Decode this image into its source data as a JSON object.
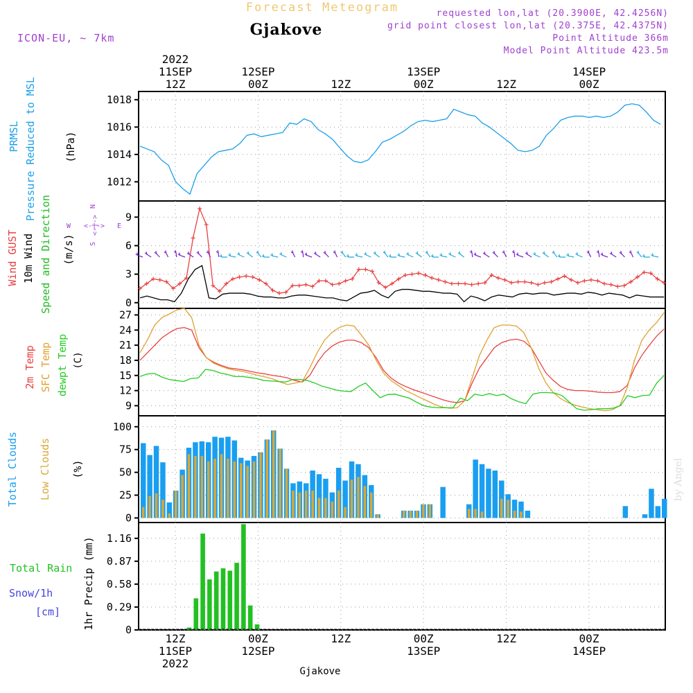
{
  "header": {
    "faded_title": "Forecast Meteogram",
    "location": "Gjakove",
    "model": "ICON-EU, ~ 7km",
    "requested": "requested lon,lat (20.3900E, 42.4256N)",
    "grid_point": "grid point closest lon,lat (20.375E, 42.4375N)",
    "point_alt": "Point Altitude 366m",
    "model_alt": "Model Point Altitude 423.5m",
    "footer_location": "Gjakove",
    "watermark": "by Angel"
  },
  "time_axis": {
    "top_labels": [
      {
        "h": 12,
        "lines": [
          "2022",
          "11SEP",
          "12Z"
        ]
      },
      {
        "h": 24,
        "lines": [
          "12SEP",
          "00Z"
        ]
      },
      {
        "h": 36,
        "lines": [
          "12Z"
        ]
      },
      {
        "h": 48,
        "lines": [
          "13SEP",
          "00Z"
        ]
      },
      {
        "h": 60,
        "lines": [
          "12Z"
        ]
      },
      {
        "h": 72,
        "lines": [
          "14SEP",
          "00Z"
        ]
      }
    ],
    "bottom_labels": [
      {
        "h": 12,
        "lines": [
          "12Z",
          "11SEP",
          "2022"
        ]
      },
      {
        "h": 24,
        "lines": [
          "00Z",
          "12SEP"
        ]
      },
      {
        "h": 36,
        "lines": [
          "12Z"
        ]
      },
      {
        "h": 48,
        "lines": [
          "00Z",
          "13SEP"
        ]
      },
      {
        "h": 60,
        "lines": [
          "12Z"
        ]
      },
      {
        "h": 72,
        "lines": [
          "00Z",
          "14SEP"
        ]
      }
    ]
  },
  "compass": {
    "n": "N",
    "s": "S",
    "w": "W",
    "e": "E"
  },
  "colors": {
    "pressure": "#1b9fe8",
    "gust": "#e84040",
    "wind": "#000000",
    "dir": "#22bb22",
    "temp2m": "#e84040",
    "sfc": "#e0a030",
    "dew": "#22cc22",
    "total_cloud": "#1a9ef0",
    "low_cloud": "#d8a838",
    "rain": "#22c022",
    "snow": "#4444dd",
    "purple": "#a040d0",
    "faded": "#f0c870",
    "grid": "#999999"
  },
  "chart_data": [
    {
      "type": "line",
      "panel": "pressure",
      "ylabel": [
        "PRMSL",
        "Pressure Reduced to MSL",
        "(hPa)"
      ],
      "ylim": [
        1010.6,
        1018.6
      ],
      "yticks": [
        "1012",
        "1014",
        "1016",
        "1018"
      ],
      "x_hours": [
        0,
        1,
        2,
        3,
        4,
        5,
        6,
        7,
        8,
        9,
        10,
        11,
        12,
        13,
        14,
        15,
        16,
        17,
        18,
        19,
        20,
        21,
        22,
        23,
        24,
        25,
        26,
        27,
        28,
        29,
        30,
        31,
        32,
        33,
        34,
        35,
        36,
        37,
        38,
        39,
        40,
        41,
        42,
        43,
        44,
        45,
        46,
        47,
        48,
        49,
        50,
        51,
        52,
        53,
        54,
        55,
        56,
        57,
        58,
        59,
        60,
        61,
        62,
        63,
        64,
        65,
        66,
        67,
        68,
        69,
        70,
        71,
        72,
        73,
        74,
        75,
        76,
        77,
        78,
        79,
        80,
        81,
        82,
        83,
        84,
        85
      ],
      "series": [
        {
          "name": "PRMSL",
          "values": [
            1014.6,
            1014.4,
            1014.2,
            1013.6,
            1013.2,
            1012.0,
            1011.5,
            1011.1,
            1012.6,
            1013.2,
            1013.8,
            1014.2,
            1014.3,
            1014.4,
            1014.8,
            1015.4,
            1015.5,
            1015.3,
            1015.4,
            1015.5,
            1015.6,
            1016.3,
            1016.2,
            1016.6,
            1016.4,
            1015.8,
            1015.5,
            1015.1,
            1014.5,
            1013.9,
            1013.5,
            1013.4,
            1013.6,
            1014.2,
            1014.9,
            1015.1,
            1015.4,
            1015.7,
            1016.1,
            1016.4,
            1016.5,
            1016.4,
            1016.5,
            1016.6,
            1017.3,
            1017.1,
            1016.9,
            1016.8,
            1016.3,
            1016.0,
            1015.6,
            1015.2,
            1014.8,
            1014.3,
            1014.2,
            1014.3,
            1014.6,
            1015.4,
            1015.9,
            1016.5,
            1016.7,
            1016.8,
            1016.8,
            1016.7,
            1016.8,
            1016.7,
            1016.8,
            1017.1,
            1017.6,
            1017.7,
            1017.6,
            1017.1,
            1016.5,
            1016.2
          ]
        }
      ]
    },
    {
      "type": "line",
      "panel": "wind",
      "ylabel": [
        "Wind GUST",
        "10m Wind",
        "Speed and Direction",
        "(m/s)"
      ],
      "ylim": [
        -0.6,
        10.7
      ],
      "yticks": [
        "0",
        "3",
        "6",
        "9"
      ],
      "series": [
        {
          "name": "Wind GUST",
          "values": [
            1.5,
            2.0,
            2.5,
            2.4,
            2.2,
            1.5,
            2.0,
            2.6,
            6.8,
            9.9,
            8.2,
            1.8,
            1.2,
            2.0,
            2.5,
            2.7,
            2.8,
            2.7,
            2.4,
            2.0,
            1.3,
            1.0,
            1.1,
            1.8,
            1.8,
            1.9,
            1.7,
            2.3,
            2.3,
            1.9,
            2.0,
            2.3,
            2.5,
            3.5,
            3.5,
            3.3,
            2.1,
            1.6,
            2.0,
            2.5,
            2.9,
            3.0,
            3.1,
            2.9,
            2.6,
            2.4,
            2.2,
            2.0,
            2.0,
            2.0,
            1.9,
            2.0,
            2.1,
            2.9,
            2.6,
            2.4,
            2.1,
            2.2,
            2.2,
            2.1,
            1.9,
            2.1,
            2.2,
            2.5,
            2.8,
            2.4,
            2.1,
            2.3,
            2.4,
            2.3,
            2.0,
            1.9,
            1.7,
            1.8,
            2.2,
            2.7,
            3.2,
            3.1,
            2.5,
            2.1
          ]
        },
        {
          "name": "10m Wind",
          "values": [
            0.5,
            0.7,
            0.5,
            0.3,
            0.3,
            0.1,
            1.0,
            2.5,
            3.5,
            3.9,
            0.5,
            0.4,
            0.9,
            1.0,
            1.0,
            1.0,
            0.9,
            0.7,
            0.6,
            0.6,
            0.5,
            0.5,
            0.7,
            0.8,
            0.8,
            0.7,
            0.6,
            0.5,
            0.5,
            0.3,
            0.2,
            0.6,
            1.0,
            1.1,
            1.3,
            0.8,
            0.5,
            1.2,
            1.4,
            1.4,
            1.3,
            1.2,
            1.2,
            1.1,
            1.0,
            1.0,
            0.9,
            0.1,
            0.7,
            0.5,
            0.2,
            0.6,
            0.8,
            0.7,
            0.6,
            0.9,
            1.0,
            0.9,
            1.0,
            1.0,
            0.8,
            0.9,
            1.0,
            1.0,
            0.9,
            1.1,
            1.0,
            0.8,
            1.0,
            0.9,
            0.8,
            0.5,
            0.8,
            0.7,
            0.6,
            0.6,
            0.6
          ]
        }
      ]
    },
    {
      "type": "line",
      "panel": "temperature",
      "ylabel": [
        "2m Temp",
        "SFC Temp",
        "dewpt Temp",
        "(C)"
      ],
      "ylim": [
        7.0,
        28.3
      ],
      "yticks": [
        "9",
        "12",
        "15",
        "18",
        "21",
        "24",
        "27"
      ],
      "series": [
        {
          "name": "2m Temp",
          "values": [
            18.0,
            19.5,
            21.0,
            22.5,
            23.5,
            24.3,
            24.5,
            24.0,
            20.5,
            18.5,
            17.6,
            17.0,
            16.5,
            16.3,
            16.1,
            15.8,
            15.5,
            15.3,
            15.0,
            14.8,
            14.5,
            14.0,
            13.7,
            15.0,
            17.5,
            19.5,
            20.8,
            21.6,
            22.0,
            22.0,
            21.5,
            20.5,
            18.5,
            16.0,
            14.5,
            13.5,
            12.8,
            12.2,
            11.7,
            11.2,
            10.7,
            10.2,
            9.8,
            9.6,
            10.0,
            13.5,
            16.5,
            18.5,
            20.5,
            21.5,
            22.0,
            22.2,
            21.8,
            20.5,
            18.0,
            15.5,
            14.0,
            12.8,
            12.2,
            12.0,
            12.0,
            11.9,
            11.7,
            11.6,
            11.6,
            11.8,
            13.0,
            16.5,
            19.0,
            21.0,
            22.8,
            24.2
          ]
        },
        {
          "name": "SFC Temp",
          "values": [
            19.5,
            22.0,
            25.0,
            26.5,
            27.2,
            28.0,
            28.3,
            26.5,
            21.0,
            18.5,
            17.4,
            16.8,
            16.3,
            16.0,
            15.8,
            15.4,
            15.0,
            14.7,
            14.3,
            13.7,
            13.2,
            13.5,
            13.8,
            16.5,
            19.5,
            22.0,
            23.5,
            24.5,
            25.0,
            24.8,
            23.0,
            21.0,
            18.0,
            15.5,
            14.0,
            13.0,
            12.0,
            11.3,
            10.6,
            9.9,
            9.2,
            8.7,
            8.5,
            8.6,
            10.0,
            14.5,
            19.0,
            22.0,
            24.5,
            25.0,
            25.0,
            24.8,
            23.5,
            20.5,
            16.5,
            13.5,
            11.6,
            10.4,
            9.6,
            9.1,
            8.7,
            8.4,
            8.2,
            8.0,
            8.2,
            9.0,
            12.5,
            18.0,
            22.0,
            24.0,
            25.5,
            27.5
          ]
        },
        {
          "name": "dewpt Temp",
          "values": [
            14.8,
            15.3,
            15.4,
            14.7,
            14.2,
            14.0,
            13.8,
            14.4,
            14.5,
            16.2,
            16.0,
            15.5,
            15.2,
            14.8,
            14.8,
            14.6,
            14.4,
            14.0,
            13.9,
            13.8,
            13.7,
            14.2,
            14.2,
            14.0,
            13.5,
            12.9,
            12.5,
            12.1,
            11.9,
            11.8,
            12.8,
            13.5,
            12.0,
            10.6,
            11.2,
            11.3,
            10.9,
            10.5,
            9.7,
            9.0,
            8.7,
            8.6,
            8.6,
            8.6,
            10.5,
            10.0,
            11.3,
            11.0,
            11.4,
            11.0,
            11.3,
            10.4,
            9.8,
            9.4,
            11.3,
            11.6,
            11.6,
            11.5,
            11.0,
            9.7,
            8.4,
            8.1,
            8.2,
            8.4,
            8.4,
            8.5,
            9.0,
            11.0,
            10.6,
            11.0,
            11.1,
            13.5,
            15.0
          ]
        }
      ]
    },
    {
      "type": "bar",
      "panel": "clouds",
      "ylabel": [
        "Total Clouds",
        "Low Clouds",
        "(%)"
      ],
      "ylim": [
        -5,
        112
      ],
      "yticks": [
        "0",
        "25",
        "50",
        "75",
        "100"
      ],
      "series": [
        {
          "name": "Total Clouds",
          "values": [
            82,
            69,
            79,
            61,
            17,
            30,
            53,
            77,
            83,
            84,
            83,
            89,
            88,
            89,
            85,
            66,
            63,
            68,
            72,
            86,
            96,
            76,
            54,
            38,
            40,
            38,
            52,
            48,
            43,
            28,
            55,
            41,
            62,
            59,
            47,
            36,
            4,
            0,
            0,
            0,
            8,
            8,
            8,
            15,
            15,
            0,
            34,
            0,
            0,
            0,
            15,
            64,
            59,
            54,
            52,
            41,
            26,
            20,
            18,
            8,
            0,
            0,
            0,
            0,
            0,
            0,
            0,
            0,
            0,
            0,
            0,
            0,
            0,
            0,
            13,
            0,
            0,
            4,
            32,
            13,
            21
          ]
        },
        {
          "name": "Low Clouds",
          "values": [
            12,
            24,
            27,
            20,
            5,
            30,
            47,
            70,
            68,
            68,
            62,
            65,
            70,
            65,
            62,
            60,
            57,
            62,
            72,
            86,
            96,
            76,
            54,
            30,
            28,
            30,
            30,
            22,
            22,
            18,
            30,
            12,
            42,
            45,
            35,
            28,
            4,
            0,
            0,
            0,
            8,
            8,
            8,
            15,
            15,
            0,
            0,
            0,
            0,
            0,
            10,
            10,
            7,
            0,
            0,
            21,
            20,
            8,
            7,
            0,
            0,
            0,
            0,
            0,
            0,
            0,
            0,
            0,
            0,
            0,
            0,
            0,
            0,
            0,
            0,
            0,
            0,
            0,
            0,
            0,
            0
          ]
        }
      ]
    },
    {
      "type": "bar",
      "panel": "precip",
      "ylabel": [
        "Total Rain",
        "Snow/1h",
        "[cm]",
        "1hr Precip (mm)"
      ],
      "ylim": [
        0,
        1.36
      ],
      "yticks": [
        "0",
        "0.29",
        "0.58",
        "0.87",
        "1.16"
      ],
      "series": [
        {
          "name": "Total Rain",
          "values": [
            0,
            0,
            0,
            0,
            0,
            0,
            0.03,
            0.4,
            1.22,
            0.64,
            0.74,
            0.78,
            0.75,
            0.85,
            1.34,
            0.31,
            0.07
          ]
        }
      ]
    }
  ]
}
